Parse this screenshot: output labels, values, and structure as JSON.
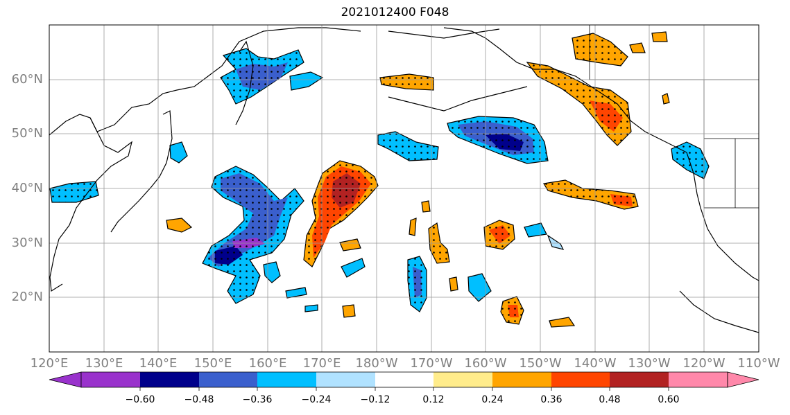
{
  "title": "2021012400 F048",
  "map": {
    "lat_labels": [
      "60°N",
      "50°N",
      "40°N",
      "30°N",
      "20°N"
    ],
    "lon_labels": [
      "120°E",
      "130°E",
      "140°E",
      "150°E",
      "160°E",
      "170°E",
      "180°W",
      "170°W",
      "160°W",
      "150°W",
      "140°W",
      "130°W",
      "120°W",
      "110°W"
    ]
  },
  "colorbar": {
    "labels": [
      "−0.60",
      "−0.48",
      "−0.36",
      "−0.24",
      "−0.12",
      "0.12",
      "0.24",
      "0.36",
      "0.48",
      "0.60"
    ],
    "colors": [
      "#9932CC",
      "#00008B",
      "#3A5FCD",
      "#00BFFF",
      "#B0E2FF",
      "#FFFFFF",
      "#FFEC8B",
      "#FFA500",
      "#FF4500",
      "#B22222",
      "#FF88AA"
    ]
  }
}
